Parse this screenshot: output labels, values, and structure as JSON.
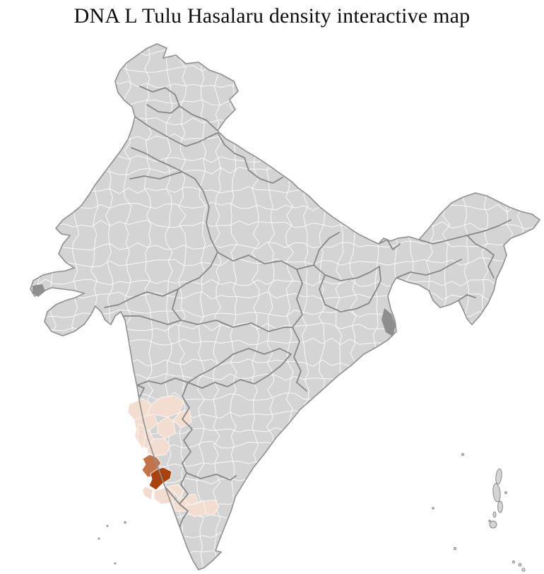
{
  "title": "DNA L Tulu Hasalaru density interactive map",
  "map": {
    "name": "india-district-density-choropleth",
    "region_highlighted": "southwest-peninsula-cluster",
    "colors": {
      "background": "#ffffff",
      "district_default": "#d4d4d4",
      "district_border": "#ffffff",
      "state_border": "#878787",
      "coast_border": "#8f8f8f",
      "density_low": "#f3ddd1",
      "density_medium": "#c3734a",
      "density_high": "#a8420e",
      "no_data_dark": "#8e8e8e"
    }
  }
}
